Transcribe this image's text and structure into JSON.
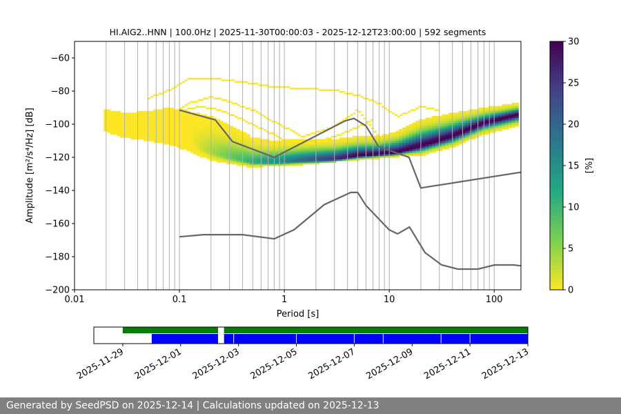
{
  "chart_data": [
    {
      "type": "heatmap",
      "title": "HI.AIG2..HNN | 100.0Hz | 2025-11-30T00:00:03 - 2025-12-12T23:00:00 | 592 segments",
      "xlabel": "Period [s]",
      "ylabel": "Amplitude [m²/s⁴/Hz] [dB]",
      "x_scale": "log",
      "xlim": [
        0.01,
        180
      ],
      "ylim": [
        -200,
        -50
      ],
      "x_ticks": [
        0.01,
        0.1,
        1,
        10,
        100
      ],
      "x_tick_labels": [
        "0.01",
        "0.1",
        "1",
        "10",
        "100"
      ],
      "y_ticks": [
        -200,
        -180,
        -160,
        -140,
        -120,
        -100,
        -80,
        -60
      ],
      "y_tick_labels": [
        "−200",
        "−180",
        "−160",
        "−140",
        "−120",
        "−100",
        "−80",
        "−60"
      ],
      "grid": "vertical lines at log-spaced periods",
      "colormap": "viridis_r",
      "colorbar": {
        "label": "[%]",
        "min": 0,
        "max": 30,
        "ticks": [
          0,
          5,
          10,
          15,
          20,
          25,
          30
        ],
        "tick_labels": [
          "0",
          "5",
          "10",
          "15",
          "20",
          "25",
          "30"
        ]
      },
      "mode_curve": {
        "period": [
          0.019,
          0.03,
          0.05,
          0.08,
          0.12,
          0.2,
          0.3,
          0.5,
          0.8,
          1.5,
          3,
          5,
          8,
          12,
          20,
          40,
          80,
          170
        ],
        "db": [
          -98,
          -102,
          -103,
          -104,
          -110,
          -117,
          -120,
          -123,
          -123,
          -122,
          -121,
          -119,
          -118,
          -117,
          -113,
          -107,
          -99,
          -94
        ]
      },
      "distribution_spread": {
        "period": [
          0.019,
          0.03,
          0.05,
          0.08,
          0.12,
          0.2,
          0.3,
          0.5,
          0.8,
          1.5,
          3,
          5,
          8,
          12,
          20,
          40,
          80,
          170
        ],
        "db_low": [
          -104,
          -108,
          -110,
          -112,
          -116,
          -122,
          -124,
          -126,
          -125,
          -124,
          -122,
          -121,
          -120,
          -119,
          -119,
          -114,
          -106,
          -101
        ],
        "db_high": [
          -91,
          -93,
          -92,
          -90,
          -92,
          -95,
          -100,
          -108,
          -110,
          -109,
          -109,
          -107,
          -107,
          -104,
          -97,
          -93,
          -90,
          -87
        ]
      },
      "sparse_traces": [
        {
          "period": [
            0.05,
            0.08,
            0.12,
            0.2,
            0.3,
            0.5,
            0.8,
            1.5,
            3,
            5,
            8,
            12,
            20,
            30
          ],
          "db": [
            -85,
            -80,
            -73,
            -73,
            -74,
            -76,
            -78,
            -79,
            -80,
            -83,
            -88,
            -96,
            -90,
            -92
          ]
        },
        {
          "period": [
            0.05,
            0.08,
            0.12,
            0.2,
            0.3,
            0.5,
            0.8,
            1.5,
            3,
            5,
            8
          ],
          "db": [
            -100,
            -95,
            -88,
            -84,
            -87,
            -92,
            -99,
            -108,
            -102,
            -92,
            -108
          ]
        },
        {
          "period": [
            0.06,
            0.1,
            0.15,
            0.22,
            0.35,
            0.6,
            1,
            2,
            4,
            7
          ],
          "db": [
            -98,
            -93,
            -90,
            -91,
            -96,
            -103,
            -110,
            -112,
            -105,
            -98
          ]
        }
      ],
      "reference_curves": [
        {
          "period": [
            0.1,
            0.22,
            0.32,
            0.8,
            3.8,
            4.6,
            6,
            7.9,
            15.4,
            20,
            180
          ],
          "db": [
            -91.5,
            -97.4,
            -110.5,
            -120,
            -98,
            -96.5,
            -101,
            -113.5,
            -120,
            -138.5,
            -129
          ]
        },
        {
          "period": [
            0.1,
            0.17,
            0.4,
            0.8,
            1.24,
            2.4,
            4.3,
            5,
            6,
            10,
            12,
            15.6,
            21.9,
            31.6,
            45,
            70,
            101,
            154,
            180
          ],
          "db": [
            -168,
            -166.7,
            -166.7,
            -169.2,
            -163.7,
            -148.6,
            -141.2,
            -141.2,
            -149.1,
            -163.8,
            -166.2,
            -162.1,
            -177.5,
            -185,
            -187.5,
            -187.5,
            -185,
            -185,
            -185.5
          ]
        }
      ]
    },
    {
      "type": "timeline",
      "date_ticks": [
        "2025-11-29",
        "2025-12-01",
        "2025-12-03",
        "2025-12-05",
        "2025-12-07",
        "2025-12-09",
        "2025-12-11",
        "2025-12-13"
      ],
      "range": [
        "2025-11-28",
        "2025-12-13"
      ],
      "green_bars": [
        [
          "2025-11-29",
          "2025-12-02T07:00"
        ],
        [
          "2025-12-02T12:00",
          "2025-12-13"
        ]
      ],
      "blue_bars": [
        [
          "2025-11-30",
          "2025-12-02T07:00"
        ],
        [
          "2025-12-02T12:00",
          "2025-12-13"
        ]
      ],
      "blue_gaps": [
        "2025-12-02T20:00",
        "2025-12-05",
        "2025-12-07",
        "2025-12-08",
        "2025-12-10",
        "2025-12-11"
      ]
    }
  ],
  "footer": {
    "text": "Generated by SeedPSD on 2025-12-14 | Calculations updated on 2025-12-13"
  }
}
